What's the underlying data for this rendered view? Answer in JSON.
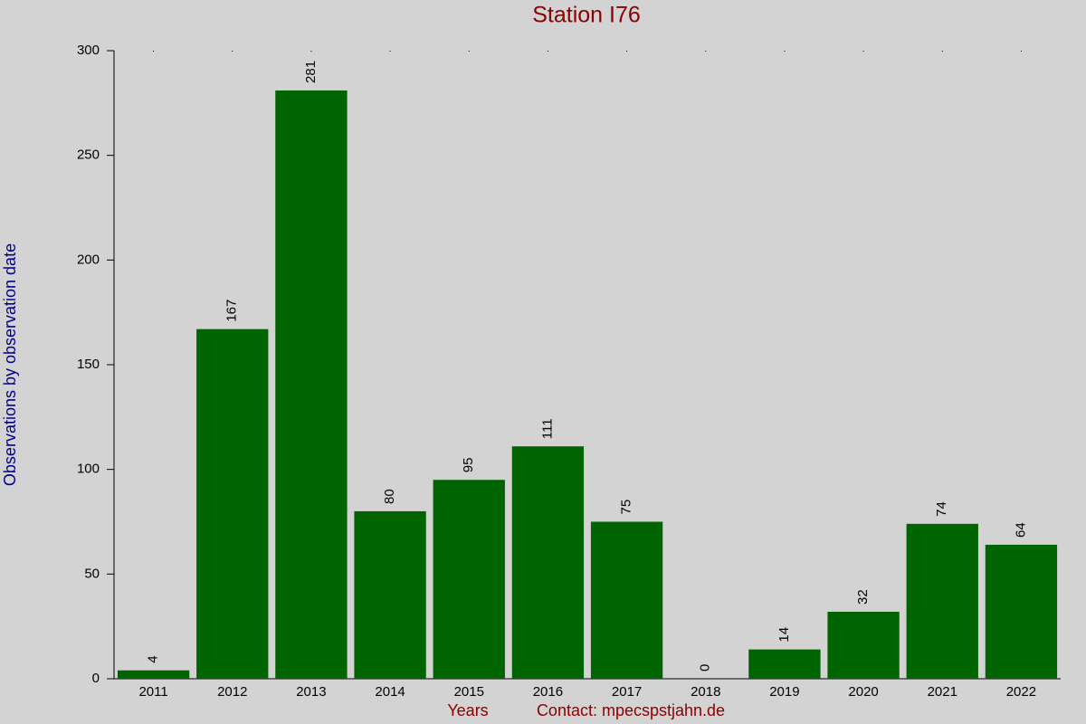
{
  "chart_data": {
    "type": "bar",
    "title": "Station I76",
    "x_label": "Years",
    "annotation": "Contact: mpecspstjahn.de",
    "y_label": "Observations by observation date",
    "categories": [
      "2011",
      "2012",
      "2013",
      "2014",
      "2015",
      "2016",
      "2017",
      "2018",
      "2019",
      "2020",
      "2021",
      "2022"
    ],
    "values": [
      4,
      167,
      281,
      80,
      95,
      111,
      75,
      0,
      14,
      32,
      74,
      64
    ],
    "color": "#006400",
    "ylim": [
      0,
      300
    ],
    "yticks": [
      0,
      50,
      100,
      150,
      200,
      250,
      300
    ],
    "grid": false
  }
}
